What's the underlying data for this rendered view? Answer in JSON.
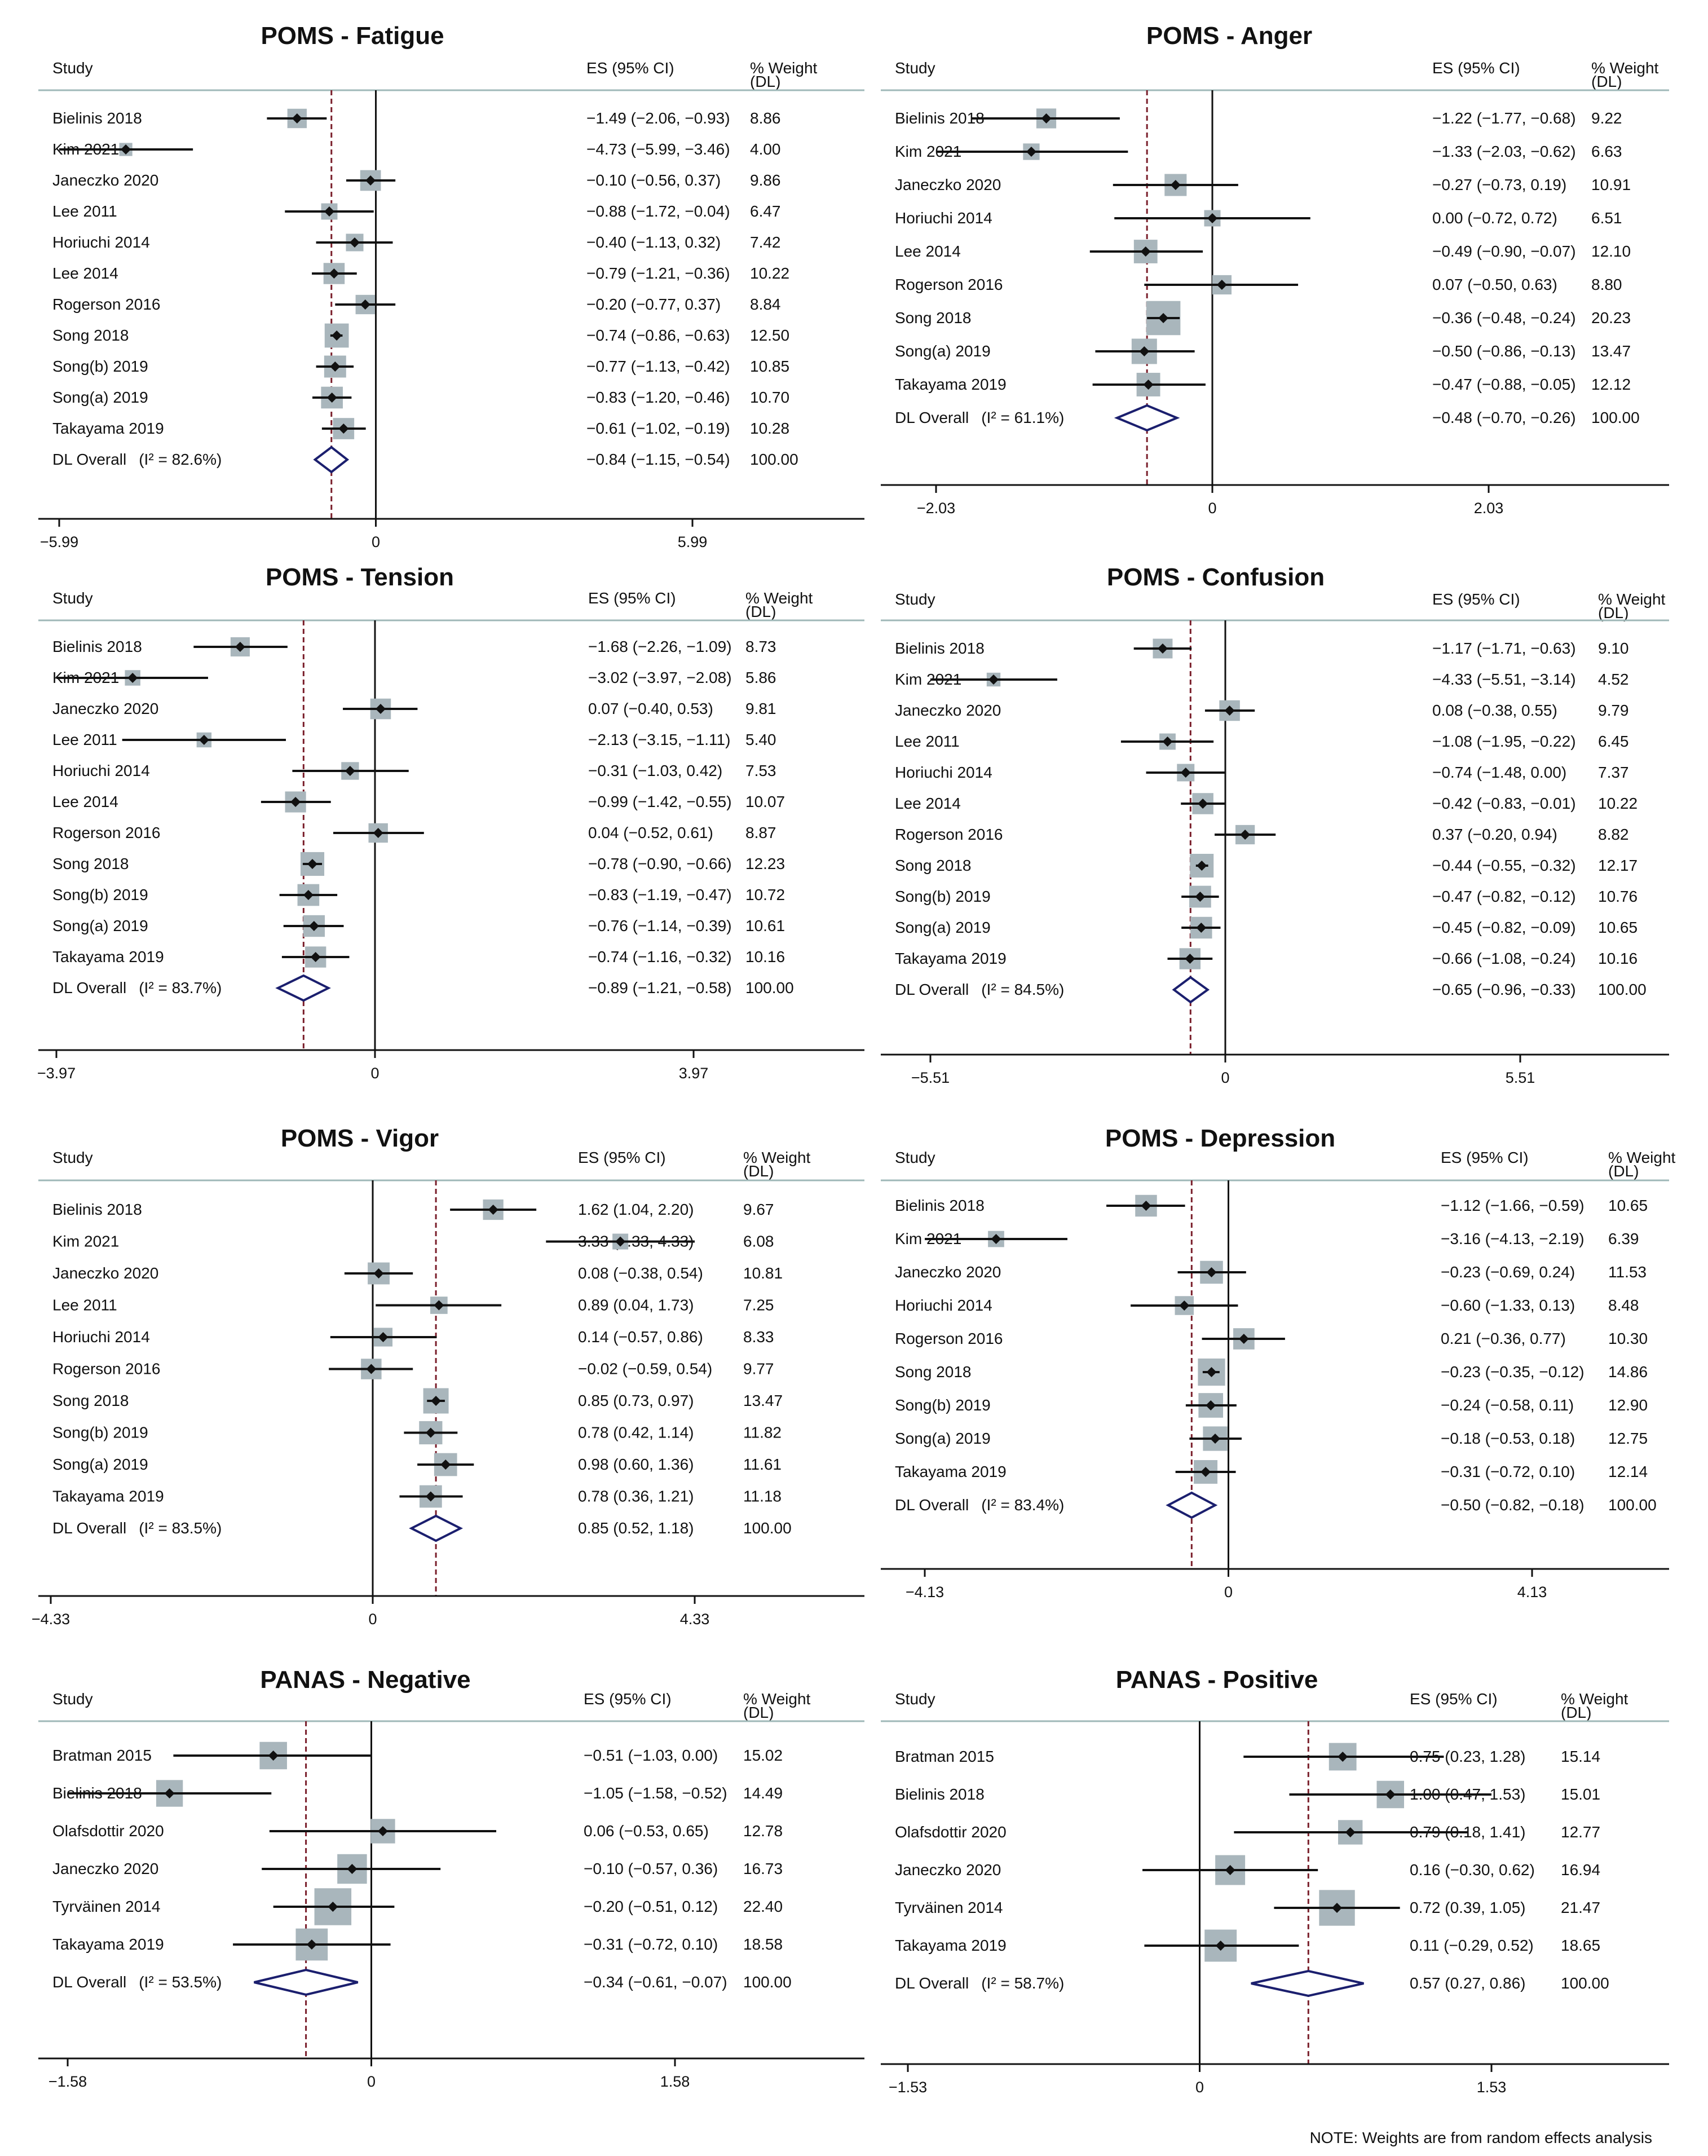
{
  "note": "NOTE: Weights are from random effects analysis",
  "columns": {
    "study": "Study",
    "es": "ES (95% CI)",
    "weight": "% Weight",
    "weight_sub": "(DL)"
  },
  "colors": {
    "diamond": "#1b1f6e",
    "line": "#7a1f2b",
    "box": "#a9b6bc",
    "point": "#111111",
    "axis": "#111111"
  },
  "chart_data": [
    {
      "type": "forest",
      "title": "POMS - Fatigue",
      "xticks": [
        -5.99,
        0,
        5.99
      ],
      "xtick_labels": [
        "−5.99",
        "0",
        "5.99"
      ],
      "xlim": [
        -5.99,
        5.99
      ],
      "overall_line": -0.84,
      "studies": [
        {
          "name": "Bielinis 2018",
          "es": -1.49,
          "lo": -2.06,
          "hi": -0.93,
          "ci": "−1.49 (−2.06, −0.93)",
          "weight": "8.86"
        },
        {
          "name": "Kim 2021",
          "es": -4.73,
          "lo": -5.99,
          "hi": -3.46,
          "ci": "−4.73 (−5.99, −3.46)",
          "weight": "4.00"
        },
        {
          "name": "Janeczko 2020",
          "es": -0.1,
          "lo": -0.56,
          "hi": 0.37,
          "ci": "−0.10 (−0.56, 0.37)",
          "weight": "9.86"
        },
        {
          "name": "Lee 2011",
          "es": -0.88,
          "lo": -1.72,
          "hi": -0.04,
          "ci": "−0.88 (−1.72, −0.04)",
          "weight": "6.47"
        },
        {
          "name": "Horiuchi 2014",
          "es": -0.4,
          "lo": -1.13,
          "hi": 0.32,
          "ci": "−0.40 (−1.13, 0.32)",
          "weight": "7.42"
        },
        {
          "name": "Lee 2014",
          "es": -0.79,
          "lo": -1.21,
          "hi": -0.36,
          "ci": "−0.79 (−1.21, −0.36)",
          "weight": "10.22"
        },
        {
          "name": "Rogerson 2016",
          "es": -0.2,
          "lo": -0.77,
          "hi": 0.37,
          "ci": "−0.20 (−0.77, 0.37)",
          "weight": "8.84"
        },
        {
          "name": "Song 2018",
          "es": -0.74,
          "lo": -0.86,
          "hi": -0.63,
          "ci": "−0.74 (−0.86, −0.63)",
          "weight": "12.50"
        },
        {
          "name": "Song(b) 2019",
          "es": -0.77,
          "lo": -1.13,
          "hi": -0.42,
          "ci": "−0.77 (−1.13, −0.42)",
          "weight": "10.85"
        },
        {
          "name": "Song(a) 2019",
          "es": -0.83,
          "lo": -1.2,
          "hi": -0.46,
          "ci": "−0.83 (−1.20, −0.46)",
          "weight": "10.70"
        },
        {
          "name": "Takayama 2019",
          "es": -0.61,
          "lo": -1.02,
          "hi": -0.19,
          "ci": "−0.61 (−1.02, −0.19)",
          "weight": "10.28"
        }
      ],
      "overall": {
        "name": "DL Overall",
        "i2": "(I² = 82.6%)",
        "es": -0.84,
        "lo": -1.15,
        "hi": -0.54,
        "ci": "−0.84 (−1.15, −0.54)",
        "weight": "100.00"
      }
    },
    {
      "type": "forest",
      "title": "POMS - Anger",
      "xticks": [
        -2.03,
        0,
        2.03
      ],
      "xtick_labels": [
        "−2.03",
        "0",
        "2.03"
      ],
      "xlim": [
        -2.03,
        2.03
      ],
      "overall_line": -0.48,
      "studies": [
        {
          "name": "Bielinis 2018",
          "es": -1.22,
          "lo": -1.77,
          "hi": -0.68,
          "ci": "−1.22 (−1.77, −0.68)",
          "weight": "9.22"
        },
        {
          "name": "Kim 2021",
          "es": -1.33,
          "lo": -2.03,
          "hi": -0.62,
          "ci": "−1.33 (−2.03, −0.62)",
          "weight": "6.63"
        },
        {
          "name": "Janeczko 2020",
          "es": -0.27,
          "lo": -0.73,
          "hi": 0.19,
          "ci": "−0.27 (−0.73, 0.19)",
          "weight": "10.91"
        },
        {
          "name": "Horiuchi 2014",
          "es": 0.0,
          "lo": -0.72,
          "hi": 0.72,
          "ci": "0.00 (−0.72, 0.72)",
          "weight": "6.51"
        },
        {
          "name": "Lee 2014",
          "es": -0.49,
          "lo": -0.9,
          "hi": -0.07,
          "ci": "−0.49 (−0.90, −0.07)",
          "weight": "12.10"
        },
        {
          "name": "Rogerson 2016",
          "es": 0.07,
          "lo": -0.5,
          "hi": 0.63,
          "ci": "0.07 (−0.50, 0.63)",
          "weight": "8.80"
        },
        {
          "name": "Song 2018",
          "es": -0.36,
          "lo": -0.48,
          "hi": -0.24,
          "ci": "−0.36 (−0.48, −0.24)",
          "weight": "20.23"
        },
        {
          "name": "Song(a) 2019",
          "es": -0.5,
          "lo": -0.86,
          "hi": -0.13,
          "ci": "−0.50 (−0.86, −0.13)",
          "weight": "13.47"
        },
        {
          "name": "Takayama 2019",
          "es": -0.47,
          "lo": -0.88,
          "hi": -0.05,
          "ci": "−0.47 (−0.88, −0.05)",
          "weight": "12.12"
        }
      ],
      "overall": {
        "name": "DL Overall",
        "i2": "(I² = 61.1%)",
        "es": -0.48,
        "lo": -0.7,
        "hi": -0.26,
        "ci": "−0.48 (−0.70, −0.26)",
        "weight": "100.00"
      }
    },
    {
      "type": "forest",
      "title": "POMS - Tension",
      "xticks": [
        -3.97,
        0,
        3.97
      ],
      "xtick_labels": [
        "−3.97",
        "0",
        "3.97"
      ],
      "xlim": [
        -3.97,
        3.97
      ],
      "overall_line": -0.89,
      "studies": [
        {
          "name": "Bielinis 2018",
          "es": -1.68,
          "lo": -2.26,
          "hi": -1.09,
          "ci": "−1.68 (−2.26, −1.09)",
          "weight": "8.73"
        },
        {
          "name": "Kim 2021",
          "es": -3.02,
          "lo": -3.97,
          "hi": -2.08,
          "ci": "−3.02 (−3.97, −2.08)",
          "weight": "5.86"
        },
        {
          "name": "Janeczko 2020",
          "es": 0.07,
          "lo": -0.4,
          "hi": 0.53,
          "ci": "0.07 (−0.40, 0.53)",
          "weight": "9.81"
        },
        {
          "name": "Lee 2011",
          "es": -2.13,
          "lo": -3.15,
          "hi": -1.11,
          "ci": "−2.13 (−3.15, −1.11)",
          "weight": "5.40"
        },
        {
          "name": "Horiuchi 2014",
          "es": -0.31,
          "lo": -1.03,
          "hi": 0.42,
          "ci": "−0.31 (−1.03, 0.42)",
          "weight": "7.53"
        },
        {
          "name": "Lee 2014",
          "es": -0.99,
          "lo": -1.42,
          "hi": -0.55,
          "ci": "−0.99 (−1.42, −0.55)",
          "weight": "10.07"
        },
        {
          "name": "Rogerson 2016",
          "es": 0.04,
          "lo": -0.52,
          "hi": 0.61,
          "ci": "0.04 (−0.52, 0.61)",
          "weight": "8.87"
        },
        {
          "name": "Song 2018",
          "es": -0.78,
          "lo": -0.9,
          "hi": -0.66,
          "ci": "−0.78 (−0.90, −0.66)",
          "weight": "12.23"
        },
        {
          "name": "Song(b) 2019",
          "es": -0.83,
          "lo": -1.19,
          "hi": -0.47,
          "ci": "−0.83 (−1.19, −0.47)",
          "weight": "10.72"
        },
        {
          "name": "Song(a) 2019",
          "es": -0.76,
          "lo": -1.14,
          "hi": -0.39,
          "ci": "−0.76 (−1.14, −0.39)",
          "weight": "10.61"
        },
        {
          "name": "Takayama 2019",
          "es": -0.74,
          "lo": -1.16,
          "hi": -0.32,
          "ci": "−0.74 (−1.16, −0.32)",
          "weight": "10.16"
        }
      ],
      "overall": {
        "name": "DL Overall",
        "i2": "(I² = 83.7%)",
        "es": -0.89,
        "lo": -1.21,
        "hi": -0.58,
        "ci": "−0.89 (−1.21, −0.58)",
        "weight": "100.00"
      }
    },
    {
      "type": "forest",
      "title": "POMS - Confusion",
      "xticks": [
        -5.51,
        0,
        5.51
      ],
      "xtick_labels": [
        "−5.51",
        "0",
        "5.51"
      ],
      "xlim": [
        -5.51,
        5.51
      ],
      "overall_line": -0.65,
      "studies": [
        {
          "name": "Bielinis 2018",
          "es": -1.17,
          "lo": -1.71,
          "hi": -0.63,
          "ci": "−1.17 (−1.71, −0.63)",
          "weight": "9.10"
        },
        {
          "name": "Kim 2021",
          "es": -4.33,
          "lo": -5.51,
          "hi": -3.14,
          "ci": "−4.33 (−5.51, −3.14)",
          "weight": "4.52"
        },
        {
          "name": "Janeczko 2020",
          "es": 0.08,
          "lo": -0.38,
          "hi": 0.55,
          "ci": "0.08 (−0.38, 0.55)",
          "weight": "9.79"
        },
        {
          "name": "Lee 2011",
          "es": -1.08,
          "lo": -1.95,
          "hi": -0.22,
          "ci": "−1.08 (−1.95, −0.22)",
          "weight": "6.45"
        },
        {
          "name": "Horiuchi 2014",
          "es": -0.74,
          "lo": -1.48,
          "hi": 0.0,
          "ci": "−0.74 (−1.48, 0.00)",
          "weight": "7.37"
        },
        {
          "name": "Lee 2014",
          "es": -0.42,
          "lo": -0.83,
          "hi": -0.01,
          "ci": "−0.42 (−0.83, −0.01)",
          "weight": "10.22"
        },
        {
          "name": "Rogerson 2016",
          "es": 0.37,
          "lo": -0.2,
          "hi": 0.94,
          "ci": "0.37 (−0.20, 0.94)",
          "weight": "8.82"
        },
        {
          "name": "Song 2018",
          "es": -0.44,
          "lo": -0.55,
          "hi": -0.32,
          "ci": "−0.44 (−0.55, −0.32)",
          "weight": "12.17"
        },
        {
          "name": "Song(b) 2019",
          "es": -0.47,
          "lo": -0.82,
          "hi": -0.12,
          "ci": "−0.47 (−0.82, −0.12)",
          "weight": "10.76"
        },
        {
          "name": "Song(a) 2019",
          "es": -0.45,
          "lo": -0.82,
          "hi": -0.09,
          "ci": "−0.45 (−0.82, −0.09)",
          "weight": "10.65"
        },
        {
          "name": "Takayama 2019",
          "es": -0.66,
          "lo": -1.08,
          "hi": -0.24,
          "ci": "−0.66 (−1.08, −0.24)",
          "weight": "10.16"
        }
      ],
      "overall": {
        "name": "DL Overall",
        "i2": "(I² = 84.5%)",
        "es": -0.65,
        "lo": -0.96,
        "hi": -0.33,
        "ci": "−0.65 (−0.96, −0.33)",
        "weight": "100.00"
      }
    },
    {
      "type": "forest",
      "title": "POMS - Vigor",
      "xticks": [
        -4.33,
        0,
        4.33
      ],
      "xtick_labels": [
        "−4.33",
        "0",
        "4.33"
      ],
      "xlim": [
        -4.33,
        4.33
      ],
      "overall_line": 0.85,
      "studies": [
        {
          "name": "Bielinis 2018",
          "es": 1.62,
          "lo": 1.04,
          "hi": 2.2,
          "ci": "1.62 (1.04, 2.20)",
          "weight": "9.67"
        },
        {
          "name": "Kim 2021",
          "es": 3.33,
          "lo": 2.33,
          "hi": 4.33,
          "ci": "3.33 (2.33, 4.33)",
          "weight": "6.08"
        },
        {
          "name": "Janeczko 2020",
          "es": 0.08,
          "lo": -0.38,
          "hi": 0.54,
          "ci": "0.08 (−0.38, 0.54)",
          "weight": "10.81"
        },
        {
          "name": "Lee 2011",
          "es": 0.89,
          "lo": 0.04,
          "hi": 1.73,
          "ci": "0.89 (0.04, 1.73)",
          "weight": "7.25"
        },
        {
          "name": "Horiuchi 2014",
          "es": 0.14,
          "lo": -0.57,
          "hi": 0.86,
          "ci": "0.14 (−0.57, 0.86)",
          "weight": "8.33"
        },
        {
          "name": "Rogerson 2016",
          "es": -0.02,
          "lo": -0.59,
          "hi": 0.54,
          "ci": "−0.02 (−0.59, 0.54)",
          "weight": "9.77"
        },
        {
          "name": "Song 2018",
          "es": 0.85,
          "lo": 0.73,
          "hi": 0.97,
          "ci": "0.85 (0.73, 0.97)",
          "weight": "13.47"
        },
        {
          "name": "Song(b) 2019",
          "es": 0.78,
          "lo": 0.42,
          "hi": 1.14,
          "ci": "0.78 (0.42, 1.14)",
          "weight": "11.82"
        },
        {
          "name": "Song(a) 2019",
          "es": 0.98,
          "lo": 0.6,
          "hi": 1.36,
          "ci": "0.98 (0.60, 1.36)",
          "weight": "11.61"
        },
        {
          "name": "Takayama 2019",
          "es": 0.78,
          "lo": 0.36,
          "hi": 1.21,
          "ci": "0.78 (0.36, 1.21)",
          "weight": "11.18"
        }
      ],
      "overall": {
        "name": "DL Overall",
        "i2": "(I² = 83.5%)",
        "es": 0.85,
        "lo": 0.52,
        "hi": 1.18,
        "ci": "0.85 (0.52, 1.18)",
        "weight": "100.00"
      }
    },
    {
      "type": "forest",
      "title": "POMS - Depression",
      "xticks": [
        -4.13,
        0,
        4.13
      ],
      "xtick_labels": [
        "−4.13",
        "0",
        "4.13"
      ],
      "xlim": [
        -4.13,
        4.13
      ],
      "overall_line": -0.5,
      "studies": [
        {
          "name": "Bielinis 2018",
          "es": -1.12,
          "lo": -1.66,
          "hi": -0.59,
          "ci": "−1.12 (−1.66, −0.59)",
          "weight": "10.65"
        },
        {
          "name": "Kim 2021",
          "es": -3.16,
          "lo": -4.13,
          "hi": -2.19,
          "ci": "−3.16 (−4.13, −2.19)",
          "weight": "6.39"
        },
        {
          "name": "Janeczko 2020",
          "es": -0.23,
          "lo": -0.69,
          "hi": 0.24,
          "ci": "−0.23 (−0.69, 0.24)",
          "weight": "11.53"
        },
        {
          "name": "Horiuchi 2014",
          "es": -0.6,
          "lo": -1.33,
          "hi": 0.13,
          "ci": "−0.60 (−1.33, 0.13)",
          "weight": "8.48"
        },
        {
          "name": "Rogerson 2016",
          "es": 0.21,
          "lo": -0.36,
          "hi": 0.77,
          "ci": "0.21 (−0.36, 0.77)",
          "weight": "10.30"
        },
        {
          "name": "Song 2018",
          "es": -0.23,
          "lo": -0.35,
          "hi": -0.12,
          "ci": "−0.23 (−0.35, −0.12)",
          "weight": "14.86"
        },
        {
          "name": "Song(b) 2019",
          "es": -0.24,
          "lo": -0.58,
          "hi": 0.11,
          "ci": "−0.24 (−0.58, 0.11)",
          "weight": "12.90"
        },
        {
          "name": "Song(a) 2019",
          "es": -0.18,
          "lo": -0.53,
          "hi": 0.18,
          "ci": "−0.18 (−0.53, 0.18)",
          "weight": "12.75"
        },
        {
          "name": "Takayama 2019",
          "es": -0.31,
          "lo": -0.72,
          "hi": 0.1,
          "ci": "−0.31 (−0.72, 0.10)",
          "weight": "12.14"
        }
      ],
      "overall": {
        "name": "DL Overall",
        "i2": "(I² = 83.4%)",
        "es": -0.5,
        "lo": -0.82,
        "hi": -0.18,
        "ci": "−0.50 (−0.82, −0.18)",
        "weight": "100.00"
      }
    },
    {
      "type": "forest",
      "title": "PANAS - Negative",
      "xticks": [
        -1.58,
        0,
        1.58
      ],
      "xtick_labels": [
        "−1.58",
        "0",
        "1.58"
      ],
      "xlim": [
        -1.58,
        1.58
      ],
      "overall_line": -0.34,
      "studies": [
        {
          "name": "Bratman 2015",
          "es": -0.51,
          "lo": -1.03,
          "hi": 0.0,
          "ci": "−0.51 (−1.03, 0.00)",
          "weight": "15.02"
        },
        {
          "name": "Bielinis 2018",
          "es": -1.05,
          "lo": -1.58,
          "hi": -0.52,
          "ci": "−1.05 (−1.58, −0.52)",
          "weight": "14.49"
        },
        {
          "name": "Olafsdottir 2020",
          "es": 0.06,
          "lo": -0.53,
          "hi": 0.65,
          "ci": "0.06 (−0.53, 0.65)",
          "weight": "12.78"
        },
        {
          "name": "Janeczko 2020",
          "es": -0.1,
          "lo": -0.57,
          "hi": 0.36,
          "ci": "−0.10 (−0.57, 0.36)",
          "weight": "16.73"
        },
        {
          "name": "Tyrväinen 2014",
          "es": -0.2,
          "lo": -0.51,
          "hi": 0.12,
          "ci": "−0.20 (−0.51, 0.12)",
          "weight": "22.40"
        },
        {
          "name": "Takayama 2019",
          "es": -0.31,
          "lo": -0.72,
          "hi": 0.1,
          "ci": "−0.31 (−0.72, 0.10)",
          "weight": "18.58"
        }
      ],
      "overall": {
        "name": "DL Overall",
        "i2": "(I² = 53.5%)",
        "es": -0.34,
        "lo": -0.61,
        "hi": -0.07,
        "ci": "−0.34 (−0.61, −0.07)",
        "weight": "100.00"
      }
    },
    {
      "type": "forest",
      "title": "PANAS - Positive",
      "xticks": [
        -1.53,
        0,
        1.53
      ],
      "xtick_labels": [
        "−1.53",
        "0",
        "1.53"
      ],
      "xlim": [
        -1.53,
        1.53
      ],
      "overall_line": 0.57,
      "studies": [
        {
          "name": "Bratman 2015",
          "es": 0.75,
          "lo": 0.23,
          "hi": 1.28,
          "ci": "0.75 (0.23, 1.28)",
          "weight": "15.14"
        },
        {
          "name": "Bielinis 2018",
          "es": 1.0,
          "lo": 0.47,
          "hi": 1.53,
          "ci": "1.00 (0.47, 1.53)",
          "weight": "15.01"
        },
        {
          "name": "Olafsdottir 2020",
          "es": 0.79,
          "lo": 0.18,
          "hi": 1.41,
          "ci": "0.79 (0.18, 1.41)",
          "weight": "12.77"
        },
        {
          "name": "Janeczko 2020",
          "es": 0.16,
          "lo": -0.3,
          "hi": 0.62,
          "ci": "0.16 (−0.30, 0.62)",
          "weight": "16.94"
        },
        {
          "name": "Tyrväinen 2014",
          "es": 0.72,
          "lo": 0.39,
          "hi": 1.05,
          "ci": "0.72 (0.39, 1.05)",
          "weight": "21.47"
        },
        {
          "name": "Takayama 2019",
          "es": 0.11,
          "lo": -0.29,
          "hi": 0.52,
          "ci": "0.11 (−0.29, 0.52)",
          "weight": "18.65"
        }
      ],
      "overall": {
        "name": "DL Overall",
        "i2": "(I² = 58.7%)",
        "es": 0.57,
        "lo": 0.27,
        "hi": 0.86,
        "ci": "0.57 (0.27, 0.86)",
        "weight": "100.00"
      }
    }
  ]
}
